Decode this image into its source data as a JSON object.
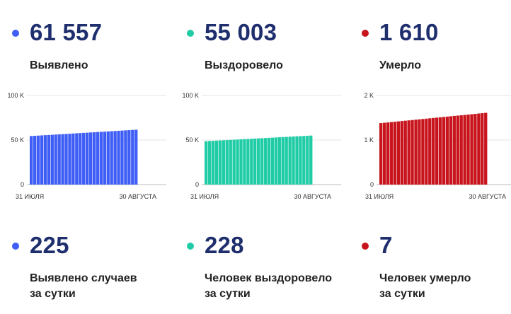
{
  "columns": [
    {
      "color": "#3f5ef5",
      "total": "61 557",
      "total_label": "Выявлено",
      "daily": "225",
      "daily_label_1": "Выявлено случаев",
      "daily_label_2": "за сутки"
    },
    {
      "color": "#1fcca5",
      "total": "55 003",
      "total_label": "Выздоровело",
      "daily": "228",
      "daily_label_1": "Человек выздоровело",
      "daily_label_2": "за сутки"
    },
    {
      "color": "#c8141c",
      "total": "1 610",
      "total_label": "Умерло",
      "daily": "7",
      "daily_label_1": "Человек умерло",
      "daily_label_2": "за сутки"
    }
  ],
  "chart_data": [
    {
      "type": "bar",
      "color": "#3f5ef5",
      "ylim": [
        0,
        100000
      ],
      "yticks": [
        0,
        50000,
        100000
      ],
      "ytick_labels": [
        "0",
        "50 K",
        "100 K"
      ],
      "xtick_labels": [
        "31 ИЮЛЯ",
        "30 АВГУСТА"
      ],
      "start": 54500,
      "end": 61557,
      "bars": 31
    },
    {
      "type": "bar",
      "color": "#1fcca5",
      "ylim": [
        0,
        100000
      ],
      "yticks": [
        0,
        50000,
        100000
      ],
      "ytick_labels": [
        "0",
        "50 K",
        "100 K"
      ],
      "xtick_labels": [
        "31 ИЮЛЯ",
        "30 АВГУСТА"
      ],
      "start": 48700,
      "end": 55003,
      "bars": 31
    },
    {
      "type": "bar",
      "color": "#c8141c",
      "ylim": [
        0,
        2000
      ],
      "yticks": [
        0,
        1000,
        2000
      ],
      "ytick_labels": [
        "0",
        "1 K",
        "2 K"
      ],
      "xtick_labels": [
        "31 ИЮЛЯ",
        "30 АВГУСТА"
      ],
      "start": 1380,
      "end": 1610,
      "bars": 31
    }
  ]
}
